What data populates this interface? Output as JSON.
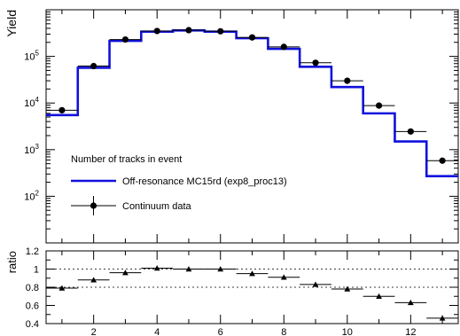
{
  "chart_data": [
    {
      "type": "line",
      "title": "",
      "ylabel": "Yield",
      "xlabel": "",
      "yscale": "log",
      "xlim": [
        0.5,
        13.5
      ],
      "ylim": [
        10,
        1000000
      ],
      "x_ticks": [
        2,
        4,
        6,
        8,
        10,
        12
      ],
      "y_ticks": [
        {
          "value": 100,
          "base": "10",
          "exp": "2"
        },
        {
          "value": 1000,
          "base": "10",
          "exp": "3"
        },
        {
          "value": 10000,
          "base": "10",
          "exp": "4"
        },
        {
          "value": 100000,
          "base": "10",
          "exp": "5"
        }
      ],
      "legend": {
        "title": "Number of tracks in event",
        "placement": "lower-left",
        "entries": [
          {
            "key": "mc",
            "label": "Off-resonance MC15rd (exp8_proc13)",
            "style": "step-line",
            "color": "#1010dd"
          },
          {
            "key": "data",
            "label": "Continuum data",
            "style": "marker-errorbar",
            "color": "#000000"
          }
        ]
      },
      "x": [
        1,
        2,
        3,
        4,
        5,
        6,
        7,
        8,
        9,
        10,
        11,
        12,
        13
      ],
      "series": [
        {
          "key": "mc",
          "values": [
            5500,
            57000,
            215000,
            340000,
            360000,
            340000,
            245000,
            145000,
            60000,
            22000,
            6000,
            1500,
            270
          ],
          "color": "#1010dd"
        },
        {
          "key": "data",
          "values": [
            7000,
            62000,
            230000,
            350000,
            365000,
            345000,
            255000,
            160000,
            73000,
            30000,
            8800,
            2450,
            580
          ],
          "color": "#000000"
        }
      ]
    },
    {
      "type": "scatter",
      "ylabel": "ratio",
      "xlabel": "",
      "xlim": [
        0.5,
        13.5
      ],
      "ylim": [
        0.4,
        1.2
      ],
      "x_ticks": [
        2,
        4,
        6,
        8,
        10,
        12
      ],
      "y_ticks": [
        "0.4",
        "0.6",
        "0.8",
        "1",
        "1.2"
      ],
      "reference_lines": [
        0.8,
        1.0
      ],
      "marker": "triangle",
      "x": [
        1,
        2,
        3,
        4,
        5,
        6,
        7,
        8,
        9,
        10,
        11,
        12,
        13
      ],
      "values": [
        0.79,
        0.88,
        0.96,
        1.01,
        1.0,
        1.0,
        0.95,
        0.91,
        0.83,
        0.78,
        0.7,
        0.63,
        0.46
      ],
      "errors": [
        0.02,
        0.02,
        0.015,
        0.01,
        0.01,
        0.01,
        0.012,
        0.015,
        0.015,
        0.02,
        0.02,
        0.025,
        0.03
      ]
    }
  ]
}
